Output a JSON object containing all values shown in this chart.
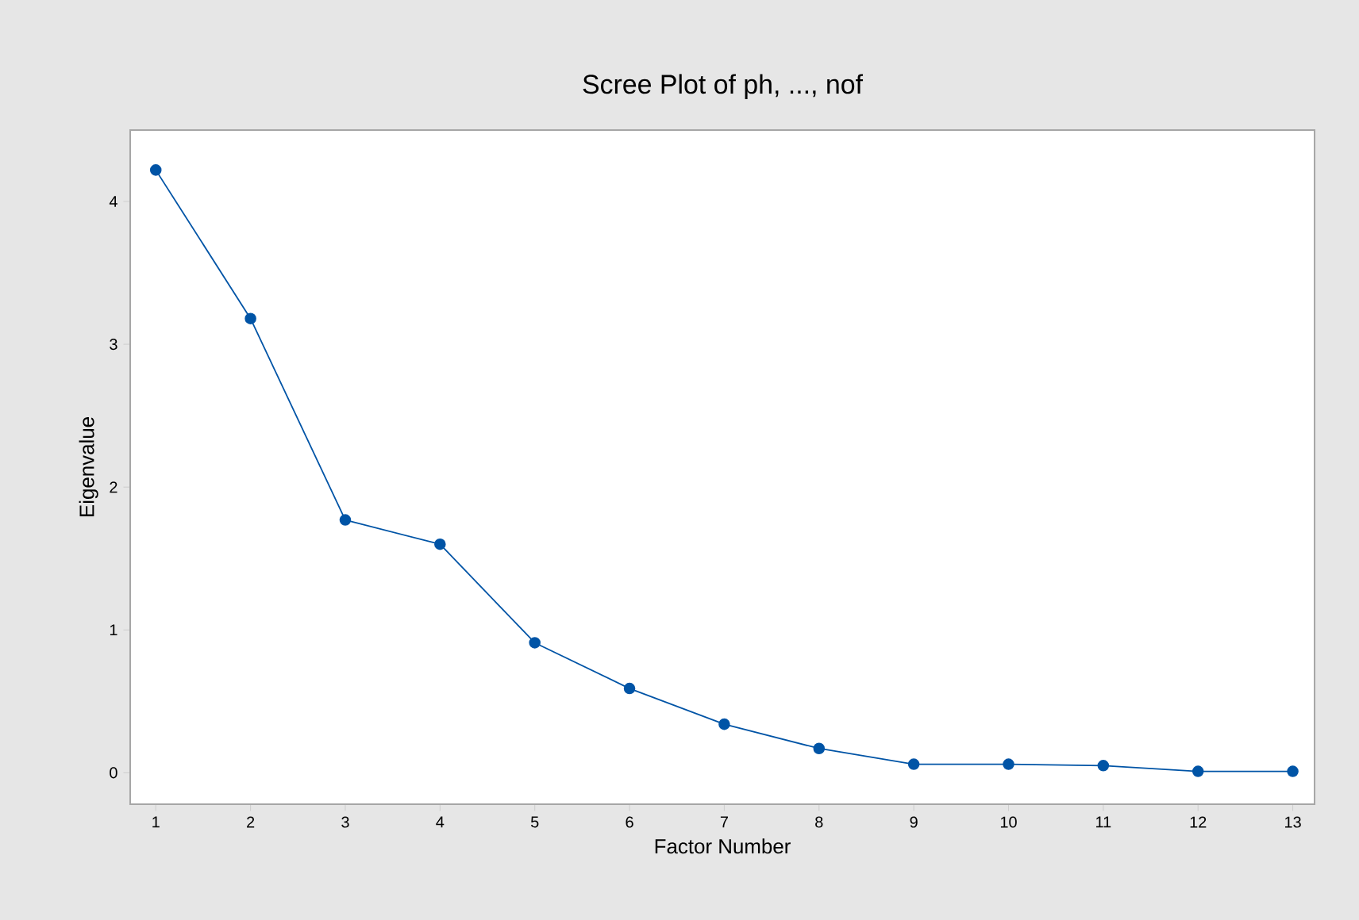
{
  "chart_data": {
    "type": "line",
    "title": "Scree Plot of ph, ..., nof",
    "xlabel": "Factor Number",
    "ylabel": "Eigenvalue",
    "x": [
      1,
      2,
      3,
      4,
      5,
      6,
      7,
      8,
      9,
      10,
      11,
      12,
      13
    ],
    "series": [
      {
        "color": "#0054a6",
        "values": [
          4.22,
          3.18,
          1.77,
          1.6,
          0.91,
          0.59,
          0.34,
          0.17,
          0.06,
          0.06,
          0.05,
          0.01,
          0.01
        ]
      }
    ],
    "xlim": [
      0.73,
      13.23
    ],
    "ylim": [
      -0.22,
      4.5
    ],
    "xticks": [
      1,
      2,
      3,
      4,
      5,
      6,
      7,
      8,
      9,
      10,
      11,
      12,
      13
    ],
    "yticks": [
      0,
      1,
      2,
      3,
      4
    ],
    "marker": "circle",
    "line_style": "solid"
  }
}
